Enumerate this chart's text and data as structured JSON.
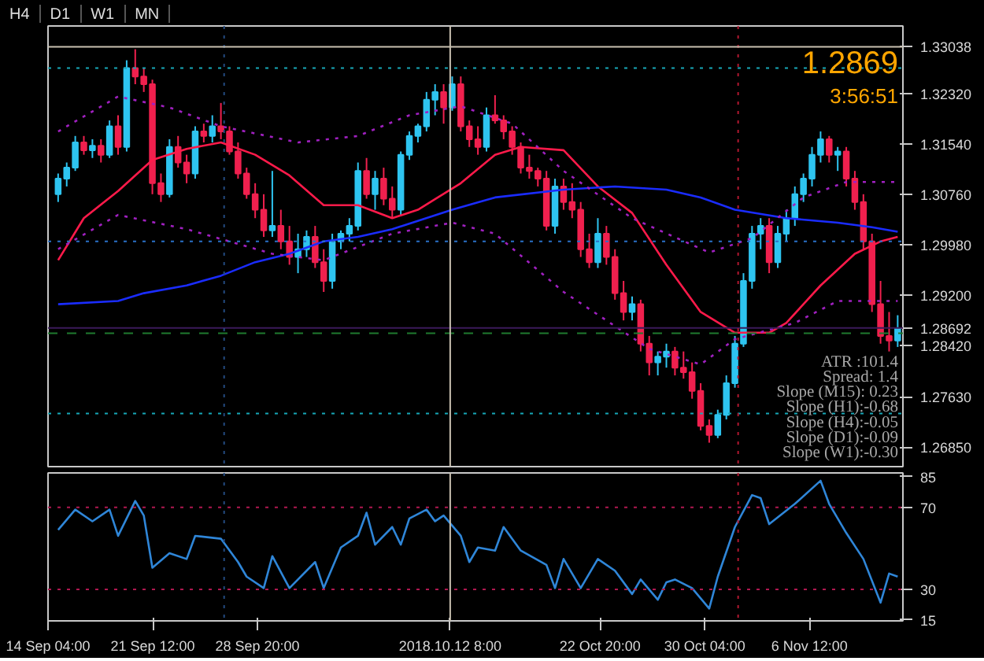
{
  "chart_data": [
    {
      "type": "candlestick",
      "annotations": [
        "H4",
        "D1",
        "W1",
        "MN",
        "1.2869",
        "3:56:51",
        "ATR :101.4",
        "Spread: 1.4",
        "Slope (M15): 0.23",
        "Slope (H1):-0.68",
        "Slope (H4):-0.05",
        "Slope (D1):-0.09",
        "Slope (W1):-0.30"
      ],
      "x": [
        "2018-09-14T21:00",
        "2018-09-15T11:24",
        "2018-09-16T01:48",
        "2018-09-16T16:12",
        "2018-09-17T06:36",
        "2018-09-17T21:00",
        "2018-09-18T11:24",
        "2018-09-19T01:48",
        "2018-09-19T16:12",
        "2018-09-20T06:36",
        "2018-09-20T21:00",
        "2018-09-21T11:24",
        "2018-09-22T01:48",
        "2018-09-22T16:12",
        "2018-09-23T06:36",
        "2018-09-23T21:00",
        "2018-09-24T11:24",
        "2018-09-25T01:48",
        "2018-09-25T16:12",
        "2018-09-26T06:36",
        "2018-09-26T21:00",
        "2018-09-27T11:24",
        "2018-09-28T01:48",
        "2018-09-28T16:12",
        "2018-09-29T06:36",
        "2018-09-29T21:00",
        "2018-09-30T11:24",
        "2018-10-01T01:48",
        "2018-10-01T16:12",
        "2018-10-02T06:36",
        "2018-10-02T21:00",
        "2018-10-03T11:24",
        "2018-10-04T01:48",
        "2018-10-04T16:12",
        "2018-10-05T06:36",
        "2018-10-05T21:00",
        "2018-10-06T11:24",
        "2018-10-07T01:48",
        "2018-10-07T16:12",
        "2018-10-08T06:36",
        "2018-10-08T21:00",
        "2018-10-09T11:24",
        "2018-10-10T01:48",
        "2018-10-10T16:12",
        "2018-10-11T06:36",
        "2018-10-11T21:00",
        "2018-10-12T11:24",
        "2018-10-13T01:48",
        "2018-10-13T16:12",
        "2018-10-14T06:36",
        "2018-10-14T21:00",
        "2018-10-15T11:24",
        "2018-10-16T01:48",
        "2018-10-16T16:12",
        "2018-10-17T06:36",
        "2018-10-17T21:00",
        "2018-10-18T11:24",
        "2018-10-19T01:48",
        "2018-10-19T16:12",
        "2018-10-20T06:36",
        "2018-10-20T21:00",
        "2018-10-21T11:24",
        "2018-10-22T01:48",
        "2018-10-22T16:12",
        "2018-10-23T06:36",
        "2018-10-23T21:00",
        "2018-10-24T11:24",
        "2018-10-25T01:48",
        "2018-10-25T16:12",
        "2018-10-26T06:36",
        "2018-10-26T21:00",
        "2018-10-27T11:24",
        "2018-10-28T01:48",
        "2018-10-28T16:12",
        "2018-10-29T06:36",
        "2018-10-29T21:00",
        "2018-10-30T11:24",
        "2018-10-31T01:48",
        "2018-10-31T16:12",
        "2018-11-01T06:36",
        "2018-11-01T21:00",
        "2018-11-02T11:24",
        "2018-11-03T01:48",
        "2018-11-03T16:12",
        "2018-11-04T06:36",
        "2018-11-04T21:00",
        "2018-11-05T11:24",
        "2018-11-06T01:48",
        "2018-11-06T16:12",
        "2018-11-07T06:36",
        "2018-11-07T21:00",
        "2018-11-08T11:24",
        "2018-11-09T01:48",
        "2018-11-09T16:12",
        "2018-11-10T06:36",
        "2018-11-10T21:00",
        "2018-11-11T11:24",
        "2018-11-12T01:48",
        "2018-11-12T16:12"
      ],
      "ohlc": [
        [
          1.3076,
          1.3108,
          1.3064,
          1.31
        ],
        [
          1.31,
          1.3125,
          1.3088,
          1.3117
        ],
        [
          1.3117,
          1.3166,
          1.3112,
          1.3156
        ],
        [
          1.3156,
          1.3166,
          1.3137,
          1.3144
        ],
        [
          1.3144,
          1.3161,
          1.3132,
          1.3151
        ],
        [
          1.3151,
          1.3161,
          1.3125,
          1.3137
        ],
        [
          1.3137,
          1.319,
          1.3132,
          1.3181
        ],
        [
          1.3181,
          1.3198,
          1.3137,
          1.3149
        ],
        [
          1.3149,
          1.3283,
          1.3142,
          1.3271
        ],
        [
          1.3271,
          1.33,
          1.3246,
          1.3258
        ],
        [
          1.3258,
          1.3271,
          1.3234,
          1.3246
        ],
        [
          1.3246,
          1.3253,
          1.3076,
          1.3093
        ],
        [
          1.3093,
          1.3108,
          1.3064,
          1.3076
        ],
        [
          1.3076,
          1.3161,
          1.3071,
          1.3149
        ],
        [
          1.3149,
          1.3166,
          1.3117,
          1.3125
        ],
        [
          1.3125,
          1.3137,
          1.3093,
          1.3108
        ],
        [
          1.3108,
          1.3181,
          1.31,
          1.3173
        ],
        [
          1.3173,
          1.3185,
          1.3156,
          1.3166
        ],
        [
          1.3166,
          1.3198,
          1.3156,
          1.3181
        ],
        [
          1.3181,
          1.3217,
          1.3161,
          1.3173
        ],
        [
          1.3173,
          1.3181,
          1.3137,
          1.3142
        ],
        [
          1.3142,
          1.3156,
          1.31,
          1.3108
        ],
        [
          1.3108,
          1.3117,
          1.3069,
          1.3076
        ],
        [
          1.3076,
          1.3093,
          1.3039,
          1.3052
        ],
        [
          1.3052,
          1.3076,
          1.301,
          1.302
        ],
        [
          1.302,
          1.3112,
          1.301,
          1.3027
        ],
        [
          1.3027,
          1.3052,
          1.2991,
          1.3003
        ],
        [
          1.3003,
          1.3027,
          1.2967,
          1.2979
        ],
        [
          1.2979,
          1.3015,
          1.2954,
          1.2991
        ],
        [
          1.2991,
          1.302,
          1.2979,
          1.301
        ],
        [
          1.301,
          1.3027,
          1.2962,
          1.2971
        ],
        [
          1.2971,
          1.2991,
          1.2925,
          1.2942
        ],
        [
          1.2942,
          1.3015,
          1.293,
          1.3003
        ],
        [
          1.3003,
          1.302,
          1.2991,
          1.3015
        ],
        [
          1.3015,
          1.3039,
          1.3003,
          1.3027
        ],
        [
          1.3027,
          1.3125,
          1.302,
          1.3112
        ],
        [
          1.3112,
          1.3132,
          1.3069,
          1.3076
        ],
        [
          1.3076,
          1.3112,
          1.3052,
          1.31
        ],
        [
          1.31,
          1.3117,
          1.3059,
          1.3069
        ],
        [
          1.3069,
          1.3088,
          1.3039,
          1.3052
        ],
        [
          1.3052,
          1.3142,
          1.3044,
          1.3137
        ],
        [
          1.3137,
          1.3173,
          1.3129,
          1.3166
        ],
        [
          1.3166,
          1.3185,
          1.3156,
          1.3181
        ],
        [
          1.3181,
          1.3234,
          1.3173,
          1.3222
        ],
        [
          1.3222,
          1.3246,
          1.3198,
          1.3234
        ],
        [
          1.3234,
          1.3246,
          1.3185,
          1.321
        ],
        [
          1.321,
          1.3258,
          1.3205,
          1.3246
        ],
        [
          1.3246,
          1.3258,
          1.3173,
          1.3181
        ],
        [
          1.3181,
          1.319,
          1.3149,
          1.3161
        ],
        [
          1.3161,
          1.3181,
          1.3137,
          1.3149
        ],
        [
          1.3149,
          1.321,
          1.3142,
          1.3198
        ],
        [
          1.3198,
          1.3229,
          1.3185,
          1.319
        ],
        [
          1.319,
          1.3198,
          1.3161,
          1.3173
        ],
        [
          1.3173,
          1.3181,
          1.3137,
          1.3149
        ],
        [
          1.3149,
          1.3156,
          1.3108,
          1.3117
        ],
        [
          1.3117,
          1.3137,
          1.31,
          1.3112
        ],
        [
          1.3112,
          1.3117,
          1.3088,
          1.31
        ],
        [
          1.31,
          1.3112,
          1.302,
          1.3027
        ],
        [
          1.3027,
          1.31,
          1.3015,
          1.3088
        ],
        [
          1.3088,
          1.31,
          1.3052,
          1.3064
        ],
        [
          1.3064,
          1.3093,
          1.3039,
          1.3052
        ],
        [
          1.3052,
          1.3064,
          1.2979,
          1.2991
        ],
        [
          1.2991,
          1.3015,
          1.2962,
          1.2971
        ],
        [
          1.2971,
          1.3039,
          1.2962,
          1.3015
        ],
        [
          1.3015,
          1.3027,
          1.2967,
          1.2979
        ],
        [
          1.2979,
          1.2991,
          1.2913,
          1.2923
        ],
        [
          1.2923,
          1.2942,
          1.2881,
          1.2894
        ],
        [
          1.2894,
          1.2918,
          1.2881,
          1.2906
        ],
        [
          1.2906,
          1.2913,
          1.2833,
          1.2845
        ],
        [
          1.2845,
          1.2857,
          1.2796,
          1.2816
        ],
        [
          1.2816,
          1.2833,
          1.2796,
          1.2825
        ],
        [
          1.2825,
          1.2845,
          1.2808,
          1.2833
        ],
        [
          1.2833,
          1.284,
          1.2796,
          1.2808
        ],
        [
          1.2808,
          1.2833,
          1.2791,
          1.2801
        ],
        [
          1.2801,
          1.2816,
          1.276,
          1.2772
        ],
        [
          1.2772,
          1.2784,
          1.2711,
          1.2718
        ],
        [
          1.2718,
          1.2728,
          1.2692,
          1.2704
        ],
        [
          1.2704,
          1.2743,
          1.2699,
          1.2735
        ],
        [
          1.2735,
          1.2796,
          1.2728,
          1.2784
        ],
        [
          1.2784,
          1.2857,
          1.2777,
          1.2845
        ],
        [
          1.2845,
          1.2954,
          1.284,
          1.2942
        ],
        [
          1.2942,
          1.3027,
          1.293,
          1.3015
        ],
        [
          1.3015,
          1.3039,
          1.2991,
          1.3027
        ],
        [
          1.3027,
          1.3039,
          1.2954,
          1.2971
        ],
        [
          1.2971,
          1.3027,
          1.2962,
          1.3015
        ],
        [
          1.3015,
          1.3052,
          1.3003,
          1.3039
        ],
        [
          1.3039,
          1.3088,
          1.3027,
          1.3076
        ],
        [
          1.3076,
          1.3108,
          1.3064,
          1.31
        ],
        [
          1.31,
          1.3149,
          1.3088,
          1.3137
        ],
        [
          1.3137,
          1.3173,
          1.3125,
          1.3161
        ],
        [
          1.3161,
          1.3166,
          1.3125,
          1.3137
        ],
        [
          1.3137,
          1.3149,
          1.3112,
          1.3142
        ],
        [
          1.3142,
          1.3149,
          1.3088,
          1.31
        ],
        [
          1.31,
          1.3112,
          1.3052,
          1.3064
        ],
        [
          1.3064,
          1.3076,
          1.2991,
          1.3003
        ],
        [
          1.3003,
          1.3015,
          1.2894,
          1.2906
        ],
        [
          1.2906,
          1.2942,
          1.2845,
          1.2857
        ],
        [
          1.2857,
          1.2894,
          1.2833,
          1.285
        ],
        [
          1.285,
          1.2889,
          1.284,
          1.2869
        ]
      ],
      "series": [
        {
          "type": "line",
          "color": "#ff1a4a",
          "line_style": "solid",
          "x": [
            "2018-09-14T21:00",
            "2018-09-16T16:12",
            "2018-09-19T01:48",
            "2018-09-21T11:24",
            "2018-09-23T21:00",
            "2018-09-26T06:36",
            "2018-09-28T16:12",
            "2018-10-01T01:48",
            "2018-10-03T11:24",
            "2018-10-05T21:00",
            "2018-10-08T06:36",
            "2018-10-10T01:48",
            "2018-10-13T01:48",
            "2018-10-15T11:24",
            "2018-10-17T06:36",
            "2018-10-20T06:36",
            "2018-10-22T16:12",
            "2018-10-25T01:48",
            "2018-10-27T11:24",
            "2018-10-29T21:00",
            "2018-11-01T06:36",
            "2018-11-03T16:12",
            "2018-11-04T21:00",
            "2018-11-07T06:36",
            "2018-11-09T16:12",
            "2018-11-11T11:24",
            "2018-11-12T16:12"
          ],
          "values": [
            1.2974,
            1.3039,
            1.3081,
            1.3129,
            1.3146,
            1.3156,
            1.3137,
            1.3105,
            1.3059,
            1.3059,
            1.3039,
            1.3052,
            1.3093,
            1.3137,
            1.3149,
            1.3144,
            1.3088,
            1.3047,
            1.2967,
            1.2894,
            1.2862,
            1.2862,
            1.2877,
            1.2935,
            1.2984,
            1.3003,
            1.301
          ]
        },
        {
          "type": "line",
          "color": "#1a2cff",
          "line_style": "solid",
          "x": [
            "2018-09-14T21:00",
            "2018-09-19T01:48",
            "2018-09-20T21:00",
            "2018-09-23T21:00",
            "2018-09-26T06:36",
            "2018-09-28T16:12",
            "2018-10-01T01:48",
            "2018-10-03T11:24",
            "2018-10-05T21:00",
            "2018-10-08T06:36",
            "2018-10-12T11:24",
            "2018-10-15T11:24",
            "2018-10-20T06:36",
            "2018-10-23T21:00",
            "2018-10-27T11:24",
            "2018-10-29T21:00",
            "2018-11-01T06:36",
            "2018-11-04T21:00",
            "2018-11-08T11:24",
            "2018-11-10T21:00",
            "2018-11-12T16:12"
          ],
          "values": [
            1.2906,
            1.2911,
            1.2923,
            1.2935,
            1.295,
            1.2971,
            1.2984,
            1.3003,
            1.301,
            1.3022,
            1.3052,
            1.3071,
            1.3083,
            1.3088,
            1.3083,
            1.3071,
            1.3052,
            1.3039,
            1.3032,
            1.3025,
            1.3018
          ]
        },
        {
          "type": "line",
          "color": "#a020c0",
          "line_style": "dotted",
          "x": [
            "2018-09-14T21:00",
            "2018-09-19T01:48",
            "2018-09-22T16:12",
            "2018-09-26T06:36",
            "2018-10-01T16:12",
            "2018-10-05T21:00",
            "2018-10-09T11:24",
            "2018-10-13T01:48",
            "2018-10-16T16:12",
            "2018-10-20T06:36",
            "2018-10-25T01:48",
            "2018-10-30T11:24",
            "2018-11-02T11:24",
            "2018-11-06T01:48",
            "2018-11-09T01:48",
            "2018-11-12T16:12"
          ],
          "values": [
            1.3173,
            1.3227,
            1.321,
            1.3181,
            1.3156,
            1.3166,
            1.3198,
            1.3212,
            1.3185,
            1.3112,
            1.3039,
            1.2986,
            1.3008,
            1.3071,
            1.3095,
            1.3095
          ]
        },
        {
          "type": "line",
          "color": "#a020c0",
          "line_style": "dotted",
          "x": [
            "2018-09-14T21:00",
            "2018-09-19T01:48",
            "2018-09-23T21:00",
            "2018-09-29T21:00",
            "2018-10-03T11:24",
            "2018-10-08T06:36",
            "2018-10-12T11:24",
            "2018-10-15T11:24",
            "2018-10-20T06:36",
            "2018-10-26T06:36",
            "2018-10-29T21:00",
            "2018-11-01T06:36",
            "2018-11-05T11:24",
            "2018-11-08T11:24",
            "2018-11-12T16:12"
          ],
          "values": [
            1.2991,
            1.3044,
            1.3022,
            1.2984,
            1.2974,
            1.3015,
            1.3032,
            1.3015,
            1.2925,
            1.2837,
            1.2813,
            1.2852,
            1.2877,
            1.2911,
            1.2911
          ]
        }
      ],
      "xlim": [
        "2018-09-14T04:00",
        "2018-11-13T01:00"
      ],
      "ylim": [
        1.2655,
        1.3336
      ],
      "yticks": [
        {
          "value": 1.33038,
          "label": "1.33038"
        },
        {
          "value": 1.3232,
          "label": "1.32320"
        },
        {
          "value": 1.3154,
          "label": "1.31540"
        },
        {
          "value": 1.3076,
          "label": "1.30760"
        },
        {
          "value": 1.2998,
          "label": "1.29980"
        },
        {
          "value": 1.292,
          "label": "1.29200"
        },
        {
          "value": 1.28692,
          "label": "1.28692"
        },
        {
          "value": 1.2842,
          "label": "1.28420"
        },
        {
          "value": 1.2763,
          "label": "1.27630"
        },
        {
          "value": 1.2685,
          "label": "1.26850"
        }
      ],
      "ref_lines": [
        {
          "axis": "y",
          "value": 1.3271,
          "color": "#17a8b8",
          "line_style": "dotted"
        },
        {
          "axis": "y",
          "value": 1.2737,
          "color": "#17a8b8",
          "line_style": "dotted"
        },
        {
          "axis": "y",
          "value": 1.3003,
          "color": "#2a70c8",
          "line_style": "dotted"
        },
        {
          "axis": "y",
          "value": 1.2861,
          "color": "#1f7a2f",
          "line_style": "dashed"
        },
        {
          "axis": "y",
          "value": 1.28692,
          "color": "#3a1a5a",
          "line_style": "solid"
        },
        {
          "axis": "x",
          "value": "2018-09-26T12:00",
          "color": "#234a80",
          "line_style": "dotted"
        },
        {
          "axis": "x",
          "value": "2018-11-01T12:00",
          "color": "#b01830",
          "line_style": "dotted"
        },
        {
          "axis": "x",
          "value": "2018-10-12T08:00",
          "color": "#c8c0b0",
          "line_style": "solid"
        },
        {
          "axis": "y",
          "value": 1.33038,
          "color": "#c8c0b0",
          "line_style": "solid"
        }
      ],
      "tick_labels": "y"
    },
    {
      "type": "line",
      "series": [
        {
          "color": "#2f86d8",
          "x": [
            "2018-09-14T21:00",
            "2018-09-16T01:48",
            "2018-09-17T06:36",
            "2018-09-18T11:24",
            "2018-09-19T01:48",
            "2018-09-20T06:36",
            "2018-09-20T21:00",
            "2018-09-21T11:24",
            "2018-09-22T16:12",
            "2018-09-23T21:00",
            "2018-09-24T11:24",
            "2018-09-26T06:36",
            "2018-09-27T11:24",
            "2018-09-28T01:48",
            "2018-09-29T06:36",
            "2018-09-29T21:00",
            "2018-10-01T01:48",
            "2018-10-02T21:00",
            "2018-10-03T11:24",
            "2018-10-04T16:12",
            "2018-10-05T21:00",
            "2018-10-06T11:24",
            "2018-10-07T01:48",
            "2018-10-08T06:36",
            "2018-10-08T21:00",
            "2018-10-09T11:24",
            "2018-10-10T16:12",
            "2018-10-11T06:36",
            "2018-10-11T21:00",
            "2018-10-13T01:48",
            "2018-10-13T16:12",
            "2018-10-14T06:36",
            "2018-10-15T11:24",
            "2018-10-16T01:48",
            "2018-10-17T06:36",
            "2018-10-19T01:48",
            "2018-10-19T16:12",
            "2018-10-20T06:36",
            "2018-10-21T11:24",
            "2018-10-22T16:12",
            "2018-10-23T21:00",
            "2018-10-25T01:48",
            "2018-10-25T16:12",
            "2018-10-26T21:00",
            "2018-10-27T11:24",
            "2018-10-28T01:48",
            "2018-10-29T06:36",
            "2018-10-30T11:24",
            "2018-10-31T01:48",
            "2018-11-01T06:36",
            "2018-11-02T11:24",
            "2018-11-03T01:48",
            "2018-11-03T16:12",
            "2018-11-05T11:24",
            "2018-11-07T06:36",
            "2018-11-07T21:00",
            "2018-11-09T01:48",
            "2018-11-10T06:36",
            "2018-11-11T11:24",
            "2018-11-12T01:48",
            "2018-11-12T16:12"
          ],
          "values": [
            59,
            68.9,
            63.2,
            68.9,
            56.1,
            73.1,
            66,
            40.5,
            47.6,
            44.8,
            56.1,
            54.7,
            43.3,
            36.2,
            30.6,
            46.2,
            30.6,
            43.3,
            30.6,
            50.4,
            56.1,
            67.4,
            51.8,
            60.4,
            51.8,
            64.6,
            68.9,
            63.2,
            66,
            56.1,
            43.3,
            50.4,
            48.9,
            60.4,
            48.9,
            41.9,
            30.6,
            44.8,
            30.6,
            44.8,
            39.1,
            27.7,
            34.8,
            24.9,
            33.4,
            34.8,
            30.6,
            20.6,
            36.2,
            60.4,
            76,
            74.5,
            61.8,
            71.7,
            83,
            71.7,
            57.5,
            44.8,
            23.5,
            37.7,
            36.2
          ]
        }
      ],
      "xlim": [
        "2018-09-14T04:00",
        "2018-11-13T01:00"
      ],
      "ylim": [
        14.6,
        86.8
      ],
      "yticks": [
        15,
        30,
        70,
        85
      ],
      "xticks": [
        {
          "value": "2018-09-14T04:00",
          "label": "14 Sep 04:00"
        },
        {
          "value": "2018-09-21T12:00",
          "label": "21 Sep 12:00"
        },
        {
          "value": "2018-09-28T20:00",
          "label": "28 Sep 20:00"
        },
        {
          "value": "2018-10-22T20:00",
          "label": "22 Oct 20:00"
        },
        {
          "value": "2018-10-30T04:00",
          "label": "30 Oct 04:00"
        },
        {
          "value": "2018-11-06T12:00",
          "label": "6 Nov 12:00"
        }
      ],
      "ref_lines": [
        {
          "axis": "y",
          "value": 70,
          "color": "#b01850",
          "line_style": "dotted"
        },
        {
          "axis": "y",
          "value": 30,
          "color": "#b01850",
          "line_style": "dotted"
        },
        {
          "axis": "x",
          "value": "2018-09-26T12:00",
          "color": "#234a80",
          "line_style": "dotted"
        },
        {
          "axis": "x",
          "value": "2018-11-01T12:00",
          "color": "#b01830",
          "line_style": "dotted"
        },
        {
          "axis": "x",
          "value": "2018-10-12T08:00",
          "color": "#c8c0b0",
          "line_style": "solid",
          "label": "2018.10.12 8:00"
        }
      ]
    }
  ]
}
